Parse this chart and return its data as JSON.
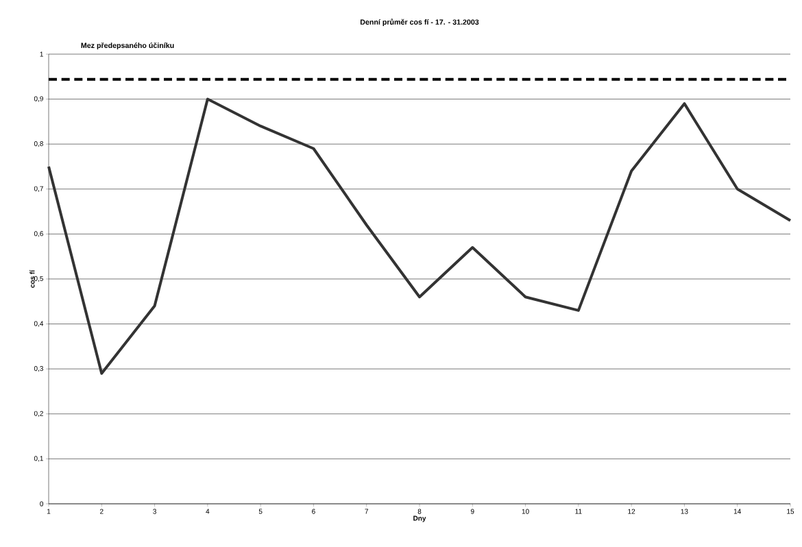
{
  "chart_data": {
    "type": "line",
    "title": "Denní průměr cos fí - 17. -  31.2003",
    "xlabel": "Dny",
    "ylabel": "cos fí",
    "x": [
      1,
      2,
      3,
      4,
      5,
      6,
      7,
      8,
      9,
      10,
      11,
      12,
      13,
      14,
      15
    ],
    "series": [
      {
        "color": "#333333",
        "values": [
          0.75,
          0.29,
          0.44,
          0.9,
          0.84,
          0.79,
          0.62,
          0.46,
          0.57,
          0.46,
          0.43,
          0.74,
          0.89,
          0.7,
          0.63
        ]
      }
    ],
    "xlim": [
      1,
      15
    ],
    "xticks": [
      1,
      2,
      3,
      4,
      5,
      6,
      7,
      8,
      9,
      10,
      11,
      12,
      13,
      14,
      15
    ],
    "ylim": [
      0,
      1
    ],
    "yticks": [
      {
        "value": 0,
        "label": "0"
      },
      {
        "value": 0.1,
        "label": "0,1"
      },
      {
        "value": 0.2,
        "label": "0,2"
      },
      {
        "value": 0.3,
        "label": "0,3"
      },
      {
        "value": 0.4,
        "label": "0,4"
      },
      {
        "value": 0.5,
        "label": "0,5"
      },
      {
        "value": 0.6,
        "label": "0,6"
      },
      {
        "value": 0.7,
        "label": "0,7"
      },
      {
        "value": 0.8,
        "label": "0,8"
      },
      {
        "value": 0.9,
        "label": "0,9"
      },
      {
        "value": 1,
        "label": "1"
      }
    ],
    "ref_lines": [
      {
        "axis": "y",
        "value": 0.944,
        "label": "Mez předepsaného účiníku",
        "color": "#000000",
        "line_style": "dashed"
      }
    ],
    "grid": "y",
    "marker": "none",
    "line_style": "solid"
  }
}
